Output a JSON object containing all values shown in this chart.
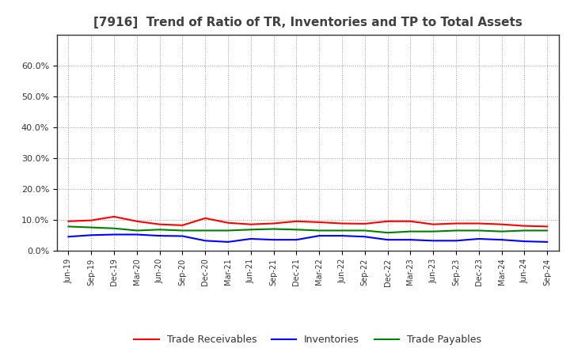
{
  "title": "[7916]  Trend of Ratio of TR, Inventories and TP to Total Assets",
  "x_labels": [
    "Jun-19",
    "Sep-19",
    "Dec-19",
    "Mar-20",
    "Jun-20",
    "Sep-20",
    "Dec-20",
    "Mar-21",
    "Jun-21",
    "Sep-21",
    "Dec-21",
    "Mar-22",
    "Jun-22",
    "Sep-22",
    "Dec-22",
    "Mar-23",
    "Jun-23",
    "Sep-23",
    "Dec-23",
    "Mar-24",
    "Jun-24",
    "Sep-24"
  ],
  "trade_receivables": [
    9.5,
    9.8,
    11.0,
    9.5,
    8.5,
    8.2,
    10.5,
    9.0,
    8.5,
    8.8,
    9.5,
    9.2,
    8.8,
    8.7,
    9.5,
    9.5,
    8.5,
    8.8,
    8.8,
    8.5,
    8.0,
    7.8
  ],
  "inventories": [
    4.5,
    5.0,
    5.2,
    5.2,
    4.8,
    4.7,
    3.2,
    2.8,
    3.8,
    3.5,
    3.5,
    4.8,
    4.8,
    4.5,
    3.5,
    3.5,
    3.2,
    3.2,
    3.8,
    3.5,
    3.0,
    2.8
  ],
  "trade_payables": [
    7.8,
    7.5,
    7.2,
    6.5,
    6.8,
    6.5,
    6.5,
    6.5,
    6.8,
    7.0,
    6.8,
    6.5,
    6.5,
    6.5,
    5.8,
    6.2,
    6.2,
    6.5,
    6.5,
    6.2,
    6.5,
    6.5
  ],
  "colors": {
    "trade_receivables": "#ff0000",
    "inventories": "#0000ff",
    "trade_payables": "#008000"
  },
  "ylim": [
    0,
    70
  ],
  "yticks": [
    0,
    10,
    20,
    30,
    40,
    50,
    60
  ],
  "ytick_labels": [
    "0.0%",
    "10.0%",
    "20.0%",
    "30.0%",
    "40.0%",
    "50.0%",
    "60.0%"
  ],
  "background_color": "#ffffff",
  "plot_bg_color": "#ffffff",
  "grid_color": "#999999",
  "title_color": "#404040",
  "legend_labels": [
    "Trade Receivables",
    "Inventories",
    "Trade Payables"
  ]
}
